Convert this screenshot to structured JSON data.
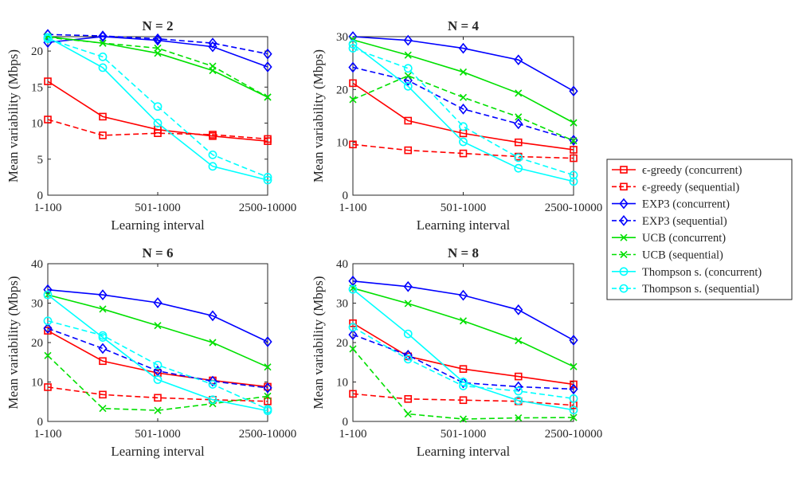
{
  "chart_data": {
    "type": "line",
    "xlabel": "Learning interval",
    "ylabel": "Mean variability (Mbps)",
    "x_tick_labels": [
      "1-100",
      "501-1000",
      "2500-10000"
    ],
    "series_meta": [
      {
        "name": "ϵ-greedy (concurrent)",
        "color": "#ff0000",
        "marker": "square",
        "dash": "solid"
      },
      {
        "name": "ϵ-greedy (sequential)",
        "color": "#ff0000",
        "marker": "square",
        "dash": "dashed"
      },
      {
        "name": "EXP3 (concurrent)",
        "color": "#0000ff",
        "marker": "diamond",
        "dash": "solid"
      },
      {
        "name": "EXP3 (sequential)",
        "color": "#0000ff",
        "marker": "diamond",
        "dash": "dashed"
      },
      {
        "name": "UCB (concurrent)",
        "color": "#00e000",
        "marker": "x",
        "dash": "solid"
      },
      {
        "name": "UCB (sequential)",
        "color": "#00e000",
        "marker": "x",
        "dash": "dashed"
      },
      {
        "name": "Thompson s. (concurrent)",
        "color": "#00ffff",
        "marker": "circle",
        "dash": "solid"
      },
      {
        "name": "Thompson s. (sequential)",
        "color": "#00ffff",
        "marker": "circle",
        "dash": "dashed"
      }
    ],
    "panels": [
      {
        "title": "N = 2",
        "ylim": [
          0,
          22
        ],
        "yticks": [
          0,
          5,
          10,
          15,
          20
        ],
        "series": [
          [
            15.8,
            10.9,
            9.1,
            8.2,
            7.5
          ],
          [
            10.5,
            8.3,
            8.6,
            8.4,
            7.8
          ],
          [
            21.2,
            22.0,
            21.5,
            20.6,
            17.8
          ],
          [
            22.3,
            22.1,
            21.7,
            21.1,
            19.6
          ],
          [
            22.0,
            21.1,
            19.7,
            17.3,
            13.6
          ],
          [
            21.9,
            21.1,
            20.4,
            17.9,
            13.6
          ],
          [
            21.9,
            17.7,
            10.0,
            4.0,
            2.1
          ],
          [
            21.7,
            19.2,
            12.3,
            5.6,
            2.5
          ]
        ]
      },
      {
        "title": "N = 4",
        "ylim": [
          0,
          30
        ],
        "yticks": [
          0,
          10,
          20,
          30
        ],
        "series": [
          [
            21.2,
            14.1,
            11.7,
            10.0,
            8.6
          ],
          [
            9.6,
            8.5,
            7.9,
            7.3,
            7.0
          ],
          [
            30.0,
            29.3,
            27.8,
            25.6,
            19.7
          ],
          [
            24.2,
            21.7,
            16.3,
            13.5,
            10.4
          ],
          [
            29.4,
            26.5,
            23.3,
            19.3,
            13.7
          ],
          [
            18.1,
            22.6,
            18.5,
            14.8,
            10.3
          ],
          [
            28.6,
            20.6,
            10.1,
            5.1,
            2.6
          ],
          [
            27.8,
            24.0,
            13.0,
            7.1,
            3.8
          ]
        ]
      },
      {
        "title": "N = 6",
        "ylim": [
          0,
          40
        ],
        "yticks": [
          0,
          10,
          20,
          30,
          40
        ],
        "series": [
          [
            23.0,
            15.3,
            12.3,
            10.4,
            8.8
          ],
          [
            8.7,
            6.8,
            6.0,
            5.5,
            5.1
          ],
          [
            33.4,
            32.1,
            30.1,
            26.8,
            20.2
          ],
          [
            23.6,
            18.5,
            12.8,
            10.2,
            8.5
          ],
          [
            32.1,
            28.5,
            24.3,
            20.0,
            13.8
          ],
          [
            16.7,
            3.3,
            2.8,
            4.5,
            6.4
          ],
          [
            32.1,
            21.3,
            10.6,
            5.5,
            2.7
          ],
          [
            25.5,
            21.8,
            14.3,
            9.4,
            3.1
          ]
        ]
      },
      {
        "title": "N = 8",
        "ylim": [
          0,
          40
        ],
        "yticks": [
          0,
          10,
          20,
          30,
          40
        ],
        "series": [
          [
            24.9,
            16.5,
            13.3,
            11.4,
            9.4
          ],
          [
            7.0,
            5.7,
            5.4,
            5.1,
            4.1
          ],
          [
            35.6,
            34.2,
            32.0,
            28.3,
            20.6
          ],
          [
            22.0,
            16.8,
            9.8,
            8.8,
            8.2
          ],
          [
            33.8,
            29.9,
            25.5,
            20.5,
            13.9
          ],
          [
            18.4,
            1.9,
            0.6,
            0.9,
            1.0
          ],
          [
            33.5,
            22.2,
            10.0,
            5.3,
            2.9
          ],
          [
            23.9,
            15.8,
            9.0,
            7.7,
            5.8
          ]
        ]
      }
    ]
  }
}
